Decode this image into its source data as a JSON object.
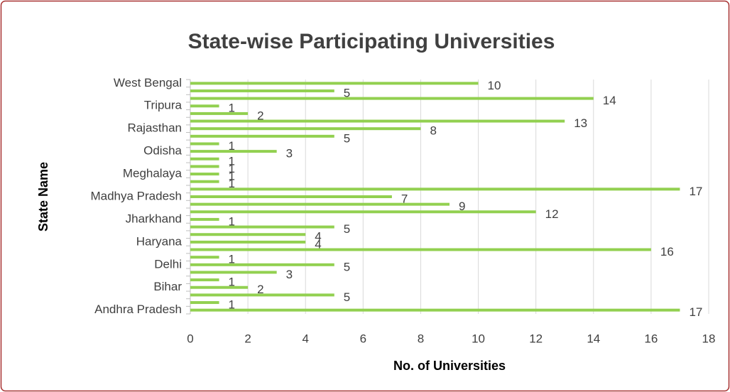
{
  "chart_data": {
    "type": "bar",
    "orientation": "horizontal",
    "title": "State-wise Participating Universities",
    "x_label": "No. of Universities",
    "y_label": "State Name",
    "categories": [
      "Andhra Pradesh",
      null,
      null,
      "Bihar",
      null,
      null,
      "Delhi",
      null,
      null,
      "Haryana",
      null,
      null,
      "Jharkhand",
      null,
      null,
      "Madhya Pradesh",
      null,
      null,
      "Meghalaya",
      null,
      null,
      "Odisha",
      null,
      null,
      "Rajasthan",
      null,
      null,
      "Tripura",
      null,
      null,
      "West Bengal"
    ],
    "values": [
      17,
      1,
      5,
      2,
      1,
      3,
      5,
      1,
      16,
      4,
      4,
      5,
      1,
      12,
      9,
      7,
      17,
      1,
      1,
      1,
      1,
      3,
      1,
      5,
      8,
      13,
      2,
      1,
      14,
      5,
      10
    ],
    "color": "#92d050",
    "xlim": [
      0,
      18
    ],
    "xticks": [
      0,
      2,
      4,
      6,
      8,
      10,
      12,
      14,
      16,
      18
    ],
    "grid": true
  }
}
